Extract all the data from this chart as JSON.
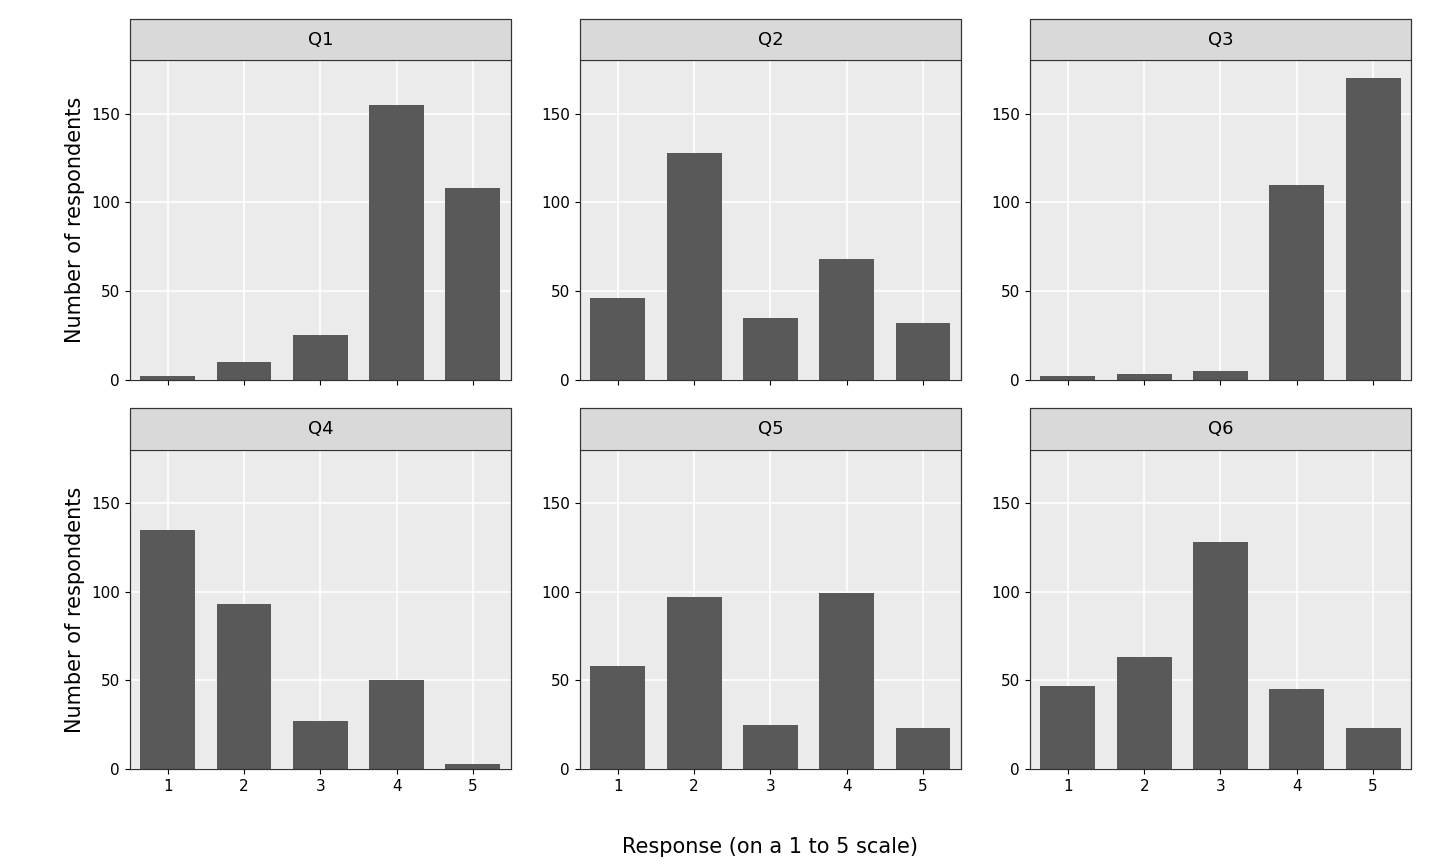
{
  "panels": [
    {
      "label": "Q1",
      "values": [
        2,
        10,
        25,
        155,
        108
      ]
    },
    {
      "label": "Q2",
      "values": [
        46,
        128,
        35,
        68,
        32
      ]
    },
    {
      "label": "Q3",
      "values": [
        2,
        3,
        5,
        110,
        170
      ]
    },
    {
      "label": "Q4",
      "values": [
        135,
        93,
        27,
        50,
        3
      ]
    },
    {
      "label": "Q5",
      "values": [
        58,
        97,
        25,
        99,
        23
      ]
    },
    {
      "label": "Q6",
      "values": [
        47,
        63,
        128,
        45,
        23
      ]
    }
  ],
  "x_ticks": [
    1,
    2,
    3,
    4,
    5
  ],
  "ylabel": "Number of respondents",
  "xlabel": "Response (on a 1 to 5 scale)",
  "bar_color": "#595959",
  "background_color": "#ffffff",
  "panel_bg_color": "#ebebeb",
  "strip_bg_color": "#d9d9d9",
  "grid_color": "#ffffff",
  "border_color": "#333333",
  "ylim": [
    0,
    180
  ],
  "yticks": [
    0,
    50,
    100,
    150
  ],
  "bar_width": 0.72,
  "strip_fontsize": 13,
  "axis_label_fontsize": 15,
  "tick_fontsize": 11,
  "ylabel_fontsize": 15
}
